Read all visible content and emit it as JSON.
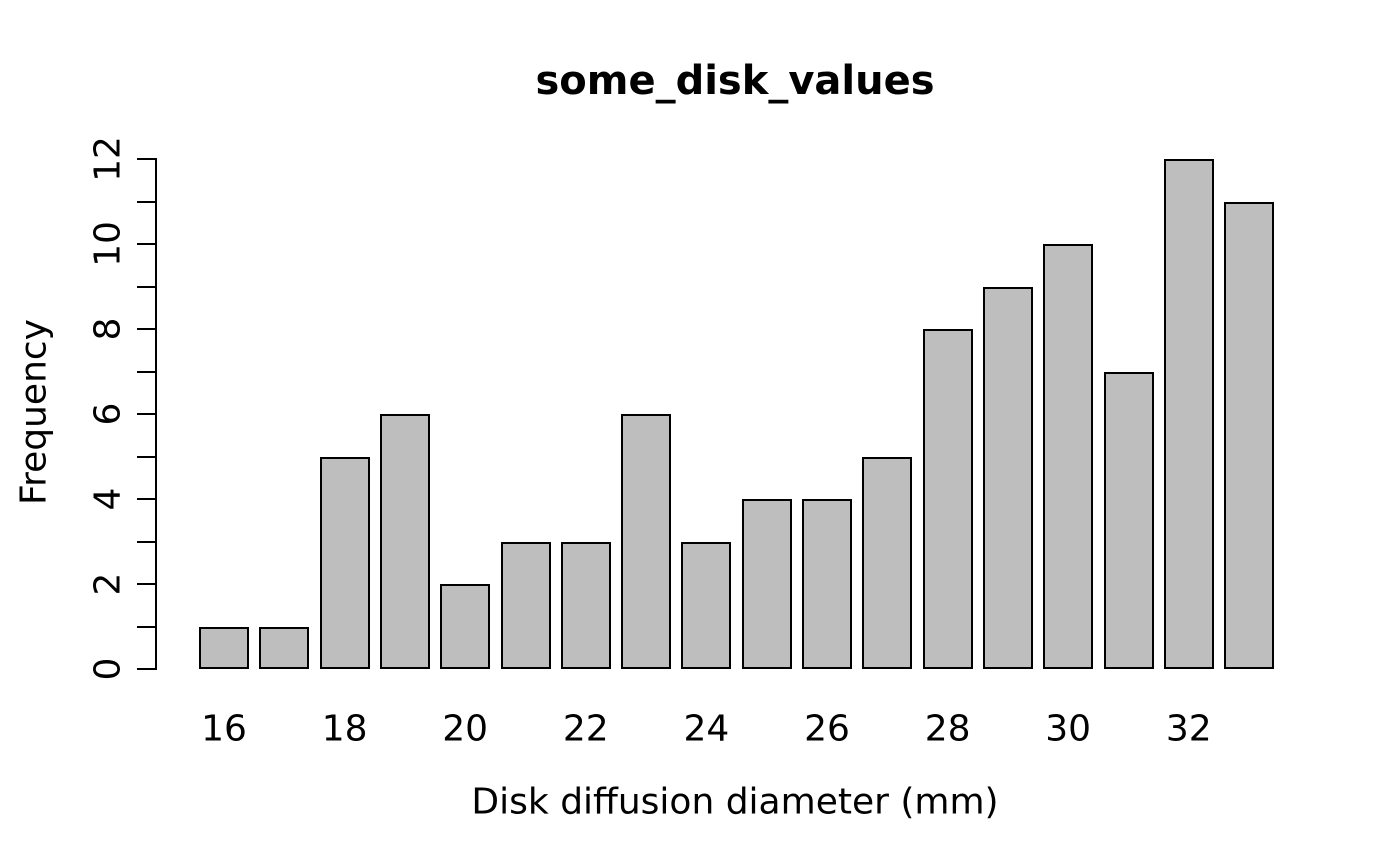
{
  "chart_data": {
    "type": "bar",
    "title": "some_disk_values",
    "xlabel": "Disk diffusion diameter (mm)",
    "ylabel": "Frequency",
    "categories": [
      16,
      17,
      18,
      19,
      20,
      21,
      22,
      23,
      24,
      25,
      26,
      27,
      28,
      29,
      30,
      31,
      32,
      33
    ],
    "values": [
      1,
      1,
      5,
      6,
      2,
      3,
      3,
      6,
      3,
      4,
      4,
      5,
      8,
      9,
      10,
      7,
      12,
      11
    ],
    "ylim": [
      0,
      12
    ],
    "y_ticks": [
      0,
      1,
      2,
      3,
      4,
      5,
      6,
      7,
      8,
      9,
      10,
      11,
      12
    ],
    "y_labeled_ticks": [
      0,
      2,
      4,
      6,
      8,
      10,
      12
    ],
    "x_tick_labels": [
      "16",
      "18",
      "20",
      "22",
      "24",
      "26",
      "28",
      "30",
      "32"
    ],
    "x_label_every_nth_bar": 2,
    "grid": false,
    "legend_position": "none",
    "bar_fill": "#BEBEBE",
    "bar_stroke": "#000000",
    "axis_color": "#000000",
    "background": "#FFFFFF"
  }
}
